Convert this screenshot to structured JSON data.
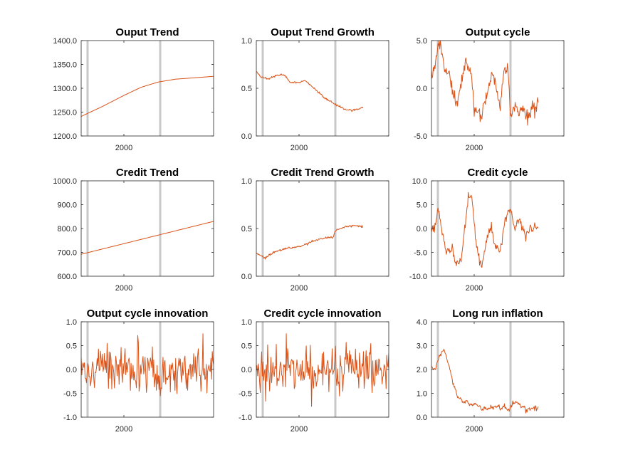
{
  "figure": {
    "series_color": "#D95319",
    "event_line_color": "#C8C8C8",
    "x_tick_label": "2000"
  },
  "chart_data": [
    {
      "type": "line",
      "title": "Ouput Trend",
      "xlabel": "",
      "ylabel": "",
      "xlim": [
        1990,
        2021
      ],
      "xticks": [
        2000
      ],
      "ylim": [
        1200,
        1400
      ],
      "yticks": [
        1400.0,
        1350.0,
        1300.0,
        1250.0,
        1200.0
      ],
      "ytick_labels": [
        "1400.0",
        "1350.0",
        "1300.0",
        "1250.0",
        "1200.0"
      ],
      "event_lines": [
        1991.5,
        2008.5
      ],
      "series": [
        {
          "points": [
            [
              1990,
              1241
            ],
            [
              1995,
              1262
            ],
            [
              2000,
              1285
            ],
            [
              2004,
              1302
            ],
            [
              2008,
              1313
            ],
            [
              2012,
              1319
            ],
            [
              2021,
              1325
            ]
          ],
          "noise": 0
        }
      ]
    },
    {
      "type": "line",
      "title": "Ouput Trend Growth",
      "xlabel": "",
      "ylabel": "",
      "xlim": [
        1990,
        2021
      ],
      "xticks": [
        2000
      ],
      "ylim": [
        0,
        1
      ],
      "yticks": [
        1.0,
        0.5,
        0.0
      ],
      "ytick_labels": [
        "1.0",
        "0.5",
        "0.0"
      ],
      "event_lines": [
        1991.5,
        2008.5
      ],
      "series": [
        {
          "points": [
            [
              1990,
              0.68
            ],
            [
              1991,
              0.62
            ],
            [
              1993,
              0.6
            ],
            [
              1995,
              0.64
            ],
            [
              1996.5,
              0.64
            ],
            [
              1998,
              0.56
            ],
            [
              2000,
              0.56
            ],
            [
              2001.5,
              0.58
            ],
            [
              2004,
              0.48
            ],
            [
              2006,
              0.4
            ],
            [
              2008.5,
              0.33
            ],
            [
              2009.5,
              0.31
            ],
            [
              2011,
              0.27
            ],
            [
              2013,
              0.27
            ],
            [
              2015,
              0.3
            ]
          ],
          "noise": 0.005
        }
      ]
    },
    {
      "type": "line",
      "title": "Output cycle",
      "xlabel": "",
      "ylabel": "",
      "xlim": [
        1990,
        2021
      ],
      "xticks": [
        2000
      ],
      "ylim": [
        -5,
        5
      ],
      "yticks": [
        5.0,
        0.0,
        -5.0
      ],
      "ytick_labels": [
        "5.0",
        "0.0",
        "-5.0"
      ],
      "event_lines": [
        1991.5,
        2008.5
      ],
      "series": [
        {
          "points": [
            [
              1990,
              1.3
            ],
            [
              1991,
              3.0
            ],
            [
              1992,
              5.0
            ],
            [
              1993,
              2.0
            ],
            [
              1994,
              1.6
            ],
            [
              1995,
              -0.5
            ],
            [
              1996,
              -1.8
            ],
            [
              1997.5,
              1.5
            ],
            [
              1998,
              3.0
            ],
            [
              1999,
              2.0
            ],
            [
              2000,
              -2.0
            ],
            [
              2001,
              -2.5
            ],
            [
              2001.5,
              -3.2
            ],
            [
              2003,
              -0.5
            ],
            [
              2004,
              1.5
            ],
            [
              2005,
              0.5
            ],
            [
              2006,
              -2.0
            ],
            [
              2007,
              2.0
            ],
            [
              2008,
              2.2
            ],
            [
              2008.5,
              -3.2
            ],
            [
              2009.5,
              -2.0
            ],
            [
              2011,
              -2.3
            ],
            [
              2013,
              -3.0
            ],
            [
              2015,
              -1.3
            ]
          ],
          "noise": 0.4
        }
      ]
    },
    {
      "type": "line",
      "title": "Credit Trend",
      "xlabel": "",
      "ylabel": "",
      "xlim": [
        1990,
        2021
      ],
      "xticks": [
        2000
      ],
      "ylim": [
        600,
        1000
      ],
      "yticks": [
        1000.0,
        900.0,
        800.0,
        700.0,
        600.0
      ],
      "ytick_labels": [
        "1000.0",
        "900.0",
        "800.0",
        "700.0",
        "600.0"
      ],
      "event_lines": [
        1991.5,
        2008.5
      ],
      "series": [
        {
          "points": [
            [
              1990,
              692
            ],
            [
              2021,
              830
            ]
          ],
          "noise": 0
        }
      ]
    },
    {
      "type": "line",
      "title": "Credit Trend Growth",
      "xlabel": "",
      "ylabel": "",
      "xlim": [
        1990,
        2021
      ],
      "xticks": [
        2000
      ],
      "ylim": [
        0,
        1
      ],
      "yticks": [
        1.0,
        0.5,
        0.0
      ],
      "ytick_labels": [
        "1.0",
        "0.5",
        "0.0"
      ],
      "event_lines": [
        1991.5,
        2008.5
      ],
      "series": [
        {
          "points": [
            [
              1990,
              0.24
            ],
            [
              1991,
              0.22
            ],
            [
              1992,
              0.19
            ],
            [
              1994,
              0.25
            ],
            [
              1996,
              0.28
            ],
            [
              1998,
              0.3
            ],
            [
              2000,
              0.31
            ],
            [
              2002,
              0.34
            ],
            [
              2004,
              0.38
            ],
            [
              2006,
              0.4
            ],
            [
              2008,
              0.41
            ],
            [
              2008.5,
              0.48
            ],
            [
              2011,
              0.52
            ],
            [
              2013,
              0.53
            ],
            [
              2015,
              0.52
            ]
          ],
          "noise": 0.006
        }
      ]
    },
    {
      "type": "line",
      "title": "Credit cycle",
      "xlabel": "",
      "ylabel": "",
      "xlim": [
        1990,
        2021
      ],
      "xticks": [
        2000
      ],
      "ylim": [
        -10,
        10
      ],
      "yticks": [
        10.0,
        5.0,
        0.0,
        -5.0,
        -10.0
      ],
      "ytick_labels": [
        "10.0",
        "5.0",
        "0.0",
        "-5.0",
        "-10.0"
      ],
      "event_lines": [
        1991.5,
        2008.5
      ],
      "series": [
        {
          "points": [
            [
              1990,
              0.5
            ],
            [
              1991,
              0.8
            ],
            [
              1991.5,
              4.5
            ],
            [
              1992.5,
              -1.0
            ],
            [
              1993.5,
              -5.0
            ],
            [
              1995,
              -4.5
            ],
            [
              1996,
              -7.5
            ],
            [
              1997,
              -6.5
            ],
            [
              1998.5,
              6.0
            ],
            [
              1999.5,
              6.5
            ],
            [
              2000.5,
              -3.0
            ],
            [
              2001.5,
              -8.5
            ],
            [
              2003,
              -2.0
            ],
            [
              2004,
              0.5
            ],
            [
              2005,
              -4.0
            ],
            [
              2006,
              -4.5
            ],
            [
              2007.5,
              2.5
            ],
            [
              2008.5,
              4.5
            ],
            [
              2009.5,
              0.0
            ],
            [
              2010.5,
              2.0
            ],
            [
              2012,
              -1.8
            ],
            [
              2013,
              0.0
            ],
            [
              2015,
              0.5
            ]
          ],
          "noise": 0.6
        }
      ]
    },
    {
      "type": "line",
      "title": "Output cycle innovation",
      "xlabel": "",
      "ylabel": "",
      "xlim": [
        1990,
        2021
      ],
      "xticks": [
        2000
      ],
      "ylim": [
        -1,
        1
      ],
      "yticks": [
        1.0,
        0.5,
        0.0,
        -0.5,
        -1.0
      ],
      "ytick_labels": [
        "1.0",
        "0.5",
        "0.0",
        "-0.5",
        "-1.0"
      ],
      "event_lines": [
        1991.5,
        2008.5
      ],
      "series": [
        {
          "random": true,
          "n": 200,
          "sigma": 0.26,
          "ymin": -0.95,
          "ymax": 0.75,
          "seed": 7
        }
      ]
    },
    {
      "type": "line",
      "title": "Credit cycle innovation",
      "xlabel": "",
      "ylabel": "",
      "xlim": [
        1990,
        2021
      ],
      "xticks": [
        2000
      ],
      "ylim": [
        -1,
        1
      ],
      "yticks": [
        1.0,
        0.5,
        0.0,
        -0.5,
        -1.0
      ],
      "ytick_labels": [
        "1.0",
        "0.5",
        "0.0",
        "-0.5",
        "-1.0"
      ],
      "event_lines": [
        1991.5,
        2008.5
      ],
      "series": [
        {
          "random": true,
          "n": 200,
          "sigma": 0.26,
          "ymin": -0.95,
          "ymax": 0.75,
          "seed": 7
        }
      ]
    },
    {
      "type": "line",
      "title": "Long run inflation",
      "xlabel": "",
      "ylabel": "",
      "xlim": [
        1990,
        2021
      ],
      "xticks": [
        2000
      ],
      "ylim": [
        0,
        4
      ],
      "yticks": [
        4.0,
        3.0,
        2.0,
        1.0,
        0.0
      ],
      "ytick_labels": [
        "4.0",
        "3.0",
        "2.0",
        "1.0",
        "0.0"
      ],
      "event_lines": [
        1991.5,
        2008.5
      ],
      "series": [
        {
          "points": [
            [
              1990,
              2.1
            ],
            [
              1991,
              2.05
            ],
            [
              1992,
              2.6
            ],
            [
              1993,
              2.85
            ],
            [
              1994,
              2.2
            ],
            [
              1995,
              1.5
            ],
            [
              1996,
              0.9
            ],
            [
              1997,
              0.7
            ],
            [
              1998,
              0.6
            ],
            [
              2000,
              0.55
            ],
            [
              2001,
              0.5
            ],
            [
              2002,
              0.3
            ],
            [
              2003,
              0.35
            ],
            [
              2004,
              0.4
            ],
            [
              2005,
              0.45
            ],
            [
              2006,
              0.35
            ],
            [
              2007,
              0.45
            ],
            [
              2008,
              0.3
            ],
            [
              2009,
              0.5
            ],
            [
              2010,
              0.65
            ],
            [
              2011,
              0.45
            ],
            [
              2012,
              0.35
            ],
            [
              2013,
              0.35
            ],
            [
              2015,
              0.4
            ]
          ],
          "noise": 0.05
        }
      ]
    }
  ]
}
